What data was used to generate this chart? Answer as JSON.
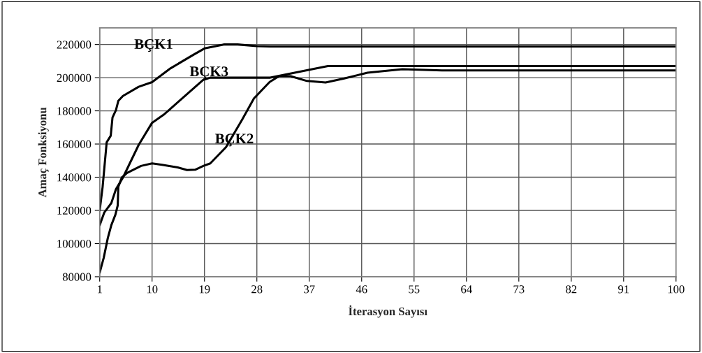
{
  "chart_data": {
    "type": "line",
    "xlabel": "İterasyon Sayısı",
    "ylabel": "Amaç Fonksiyonu",
    "xlim": [
      1,
      100
    ],
    "xticks": [
      1,
      10,
      19,
      28,
      37,
      46,
      55,
      64,
      73,
      82,
      91,
      100
    ],
    "ylim": [
      80000,
      230000
    ],
    "yticks": [
      80000,
      100000,
      120000,
      140000,
      160000,
      180000,
      200000,
      220000
    ],
    "grid": true,
    "legend": false,
    "marker": "none",
    "line_style": "solid",
    "series": [
      {
        "name": "BÇK1",
        "color": "#000000",
        "x": [
          1,
          1.5,
          2.2,
          2.9,
          3.2,
          3.8,
          4.2,
          5,
          7.7,
          10,
          13.2,
          17.2,
          19,
          22.3,
          24.7,
          28,
          30.3,
          100
        ],
        "values": [
          120000,
          134000,
          161000,
          165000,
          176000,
          180500,
          186000,
          189000,
          194500,
          197300,
          205700,
          214000,
          217600,
          220000,
          220000,
          219000,
          218800,
          218800
        ]
      },
      {
        "name": "BÇK2",
        "color": "#000000",
        "x": [
          1,
          1.7,
          2.4,
          3,
          3.7,
          4.1,
          4.2,
          4.8,
          5.7,
          8.1,
          10,
          11.7,
          14.4,
          16,
          17.4,
          18.8,
          20,
          22.7,
          25.5,
          27.5,
          30.2,
          31.8,
          33.8,
          36.6,
          39.8,
          43,
          47,
          53,
          59.8,
          100
        ],
        "values": [
          82400,
          91500,
          103400,
          111100,
          117400,
          123000,
          134200,
          139800,
          142600,
          146800,
          148300,
          147500,
          145900,
          144300,
          144500,
          146800,
          148300,
          158100,
          174900,
          187500,
          197400,
          200900,
          200900,
          198000,
          197100,
          199500,
          203000,
          205100,
          204400,
          204400
        ]
      },
      {
        "name": "BÇK3",
        "color": "#000000",
        "x": [
          1,
          1.8,
          3,
          3.8,
          5,
          7.7,
          10,
          12,
          18.8,
          20,
          30.3,
          40.2,
          100
        ],
        "values": [
          111100,
          118800,
          124400,
          132800,
          139800,
          159500,
          172800,
          177700,
          198700,
          200000,
          200000,
          207000,
          207000
        ]
      }
    ]
  }
}
